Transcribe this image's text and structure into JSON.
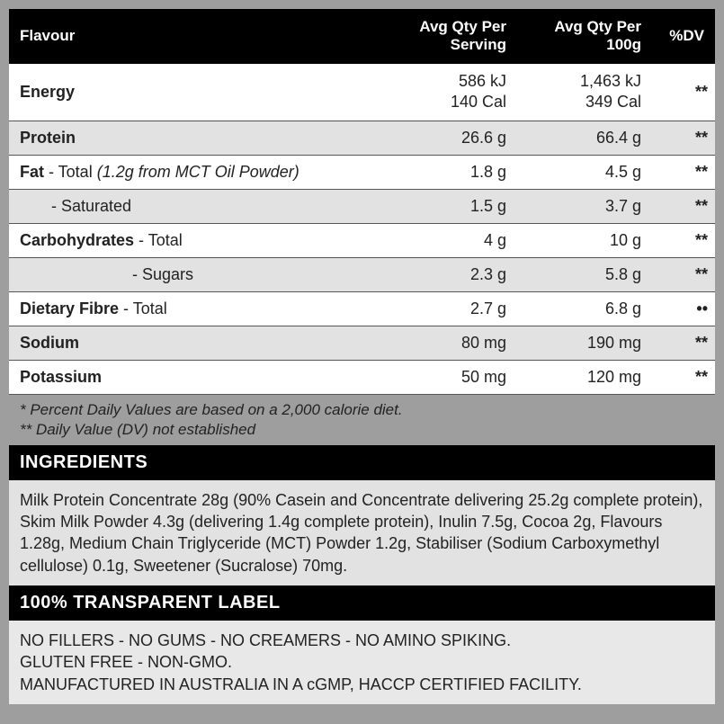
{
  "header": {
    "flavour": "Flavour",
    "serving_line1": "Avg Qty Per",
    "serving_line2": "Serving",
    "per100g": "Avg Qty Per 100g",
    "dv": "%DV"
  },
  "rows": [
    {
      "label_html": "<span class='bold'>Energy</span>",
      "serving_html": "<span class='stack'>586 kJ</span><span class='stack'>140 Cal</span>",
      "per100g_html": "<span class='stack'>1,463 kJ</span><span class='stack'>349 Cal</span>",
      "dv": "**",
      "bg": "row-even"
    },
    {
      "label_html": "<span class='bold'>Protein</span>",
      "serving_html": "26.6 g",
      "per100g_html": "66.4 g",
      "dv": "**",
      "bg": "row-odd"
    },
    {
      "label_html": "<span class='bold'>Fat</span> - Total <span class='italic'>(1.2g from MCT Oil Powder)</span>",
      "serving_html": "1.8 g",
      "per100g_html": "4.5 g",
      "dv": "**",
      "bg": "row-even"
    },
    {
      "label_html": "&nbsp;&nbsp;&nbsp;&nbsp;&nbsp;&nbsp;&nbsp;- Saturated",
      "serving_html": "1.5 g",
      "per100g_html": "3.7 g",
      "dv": "**",
      "bg": "row-odd"
    },
    {
      "label_html": "<span class='bold'>Carbohydrates</span> - Total",
      "serving_html": "4 g",
      "per100g_html": "10 g",
      "dv": "**",
      "bg": "row-even"
    },
    {
      "label_html": "&nbsp;&nbsp;&nbsp;&nbsp;&nbsp;&nbsp;&nbsp;&nbsp;&nbsp;&nbsp;&nbsp;&nbsp;&nbsp;&nbsp;&nbsp;&nbsp;&nbsp;&nbsp;&nbsp;&nbsp;&nbsp;&nbsp;&nbsp;&nbsp;&nbsp;- Sugars",
      "serving_html": "2.3 g",
      "per100g_html": "5.8 g",
      "dv": "**",
      "bg": "row-odd"
    },
    {
      "label_html": "<span class='bold'>Dietary Fibre</span> - Total",
      "serving_html": "2.7 g",
      "per100g_html": "6.8 g",
      "dv": "••",
      "bg": "row-even"
    },
    {
      "label_html": "<span class='bold'>Sodium</span>",
      "serving_html": "80 mg",
      "per100g_html": "190 mg",
      "dv": "**",
      "bg": "row-odd"
    },
    {
      "label_html": "<span class='bold'>Potassium</span>",
      "serving_html": "50 mg",
      "per100g_html": "120 mg",
      "dv": "**",
      "bg": "row-even"
    }
  ],
  "footnotes": {
    "line1": "* Percent Daily Values are based on a 2,000 calorie diet.",
    "line2": "** Daily Value (DV) not established"
  },
  "ingredients": {
    "header": "INGREDIENTS",
    "body": "Milk Protein Concentrate 28g (90% Casein and Concentrate delivering 25.2g complete protein), Skim Milk Powder 4.3g (delivering 1.4g complete protein), Inulin 7.5g, Cocoa 2g, Flavours 1.28g, Medium Chain Triglyceride (MCT) Powder 1.2g, Stabiliser (Sodium Carboxymethyl cellulose) 0.1g, Sweetener (Sucralose) 70mg."
  },
  "transparent": {
    "header": "100% TRANSPARENT LABEL",
    "line1": "NO FILLERS - NO GUMS - NO CREAMERS - NO AMINO SPIKING.",
    "line2": "GLUTEN FREE - NON-GMO.",
    "line3": "MANUFACTURED IN AUSTRALIA IN A cGMP, HACCP CERTIFIED FACILITY."
  }
}
